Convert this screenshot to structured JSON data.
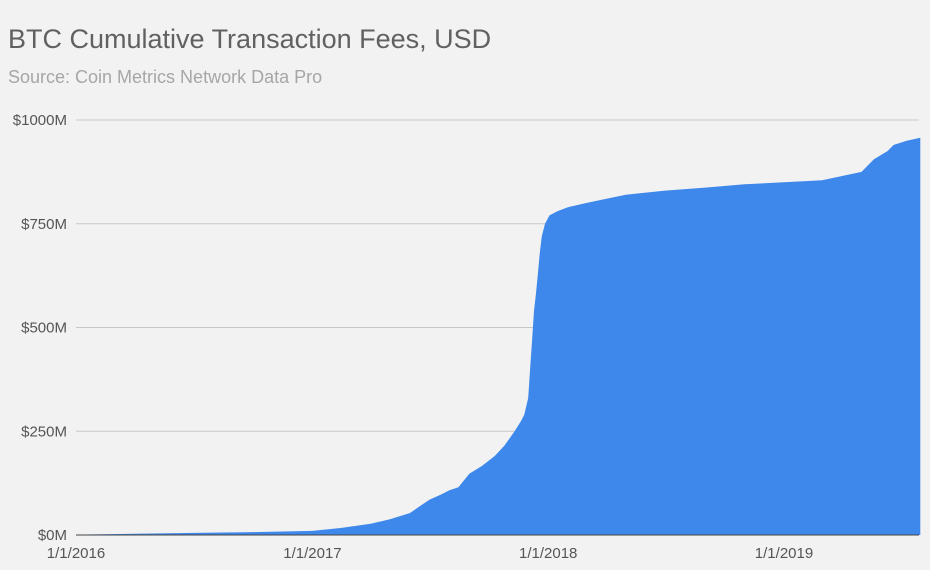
{
  "chart_data": {
    "type": "area",
    "title": "BTC Cumulative Transaction Fees, USD",
    "subtitle": "Source: Coin Metrics Network Data Pro",
    "xlabel": "",
    "ylabel": "",
    "x_ticks": [
      "1/1/2016",
      "1/1/2017",
      "1/1/2018",
      "1/1/2019"
    ],
    "y_ticks": [
      "$0M",
      "$250M",
      "$500M",
      "$750M",
      "$1000M"
    ],
    "ylim": [
      0,
      1000
    ],
    "xlim": [
      "2016-01-01",
      "2019-07-31"
    ],
    "grid": true,
    "color": "#3f88eb",
    "series": [
      {
        "x": [
          "2016-01-01",
          "2016-04-01",
          "2016-07-01",
          "2016-10-01",
          "2017-01-01",
          "2017-02-15",
          "2017-04-01",
          "2017-05-01",
          "2017-06-01",
          "2017-06-15",
          "2017-07-01",
          "2017-07-20",
          "2017-08-01",
          "2017-08-15",
          "2017-09-01",
          "2017-09-20",
          "2017-10-10",
          "2017-10-25",
          "2017-11-10",
          "2017-11-20",
          "2017-11-25",
          "2017-12-01",
          "2017-12-04",
          "2017-12-07",
          "2017-12-10",
          "2017-12-13",
          "2017-12-16",
          "2017-12-19",
          "2017-12-22",
          "2017-12-27",
          "2018-01-03",
          "2018-01-15",
          "2018-02-01",
          "2018-03-01",
          "2018-04-01",
          "2018-05-01",
          "2018-06-01",
          "2018-07-01",
          "2018-09-01",
          "2018-11-01",
          "2019-01-01",
          "2019-03-01",
          "2019-04-01",
          "2019-05-01",
          "2019-05-20",
          "2019-06-10",
          "2019-06-20",
          "2019-07-10",
          "2019-07-31"
        ],
        "values": [
          1,
          3,
          5,
          7,
          10,
          17,
          27,
          38,
          53,
          68,
          85,
          98,
          108,
          115,
          148,
          166,
          190,
          215,
          250,
          275,
          290,
          330,
          400,
          470,
          540,
          580,
          630,
          680,
          720,
          750,
          770,
          780,
          790,
          800,
          810,
          820,
          825,
          830,
          837,
          845,
          850,
          855,
          865,
          875,
          905,
          925,
          940,
          950,
          957
        ]
      }
    ]
  }
}
